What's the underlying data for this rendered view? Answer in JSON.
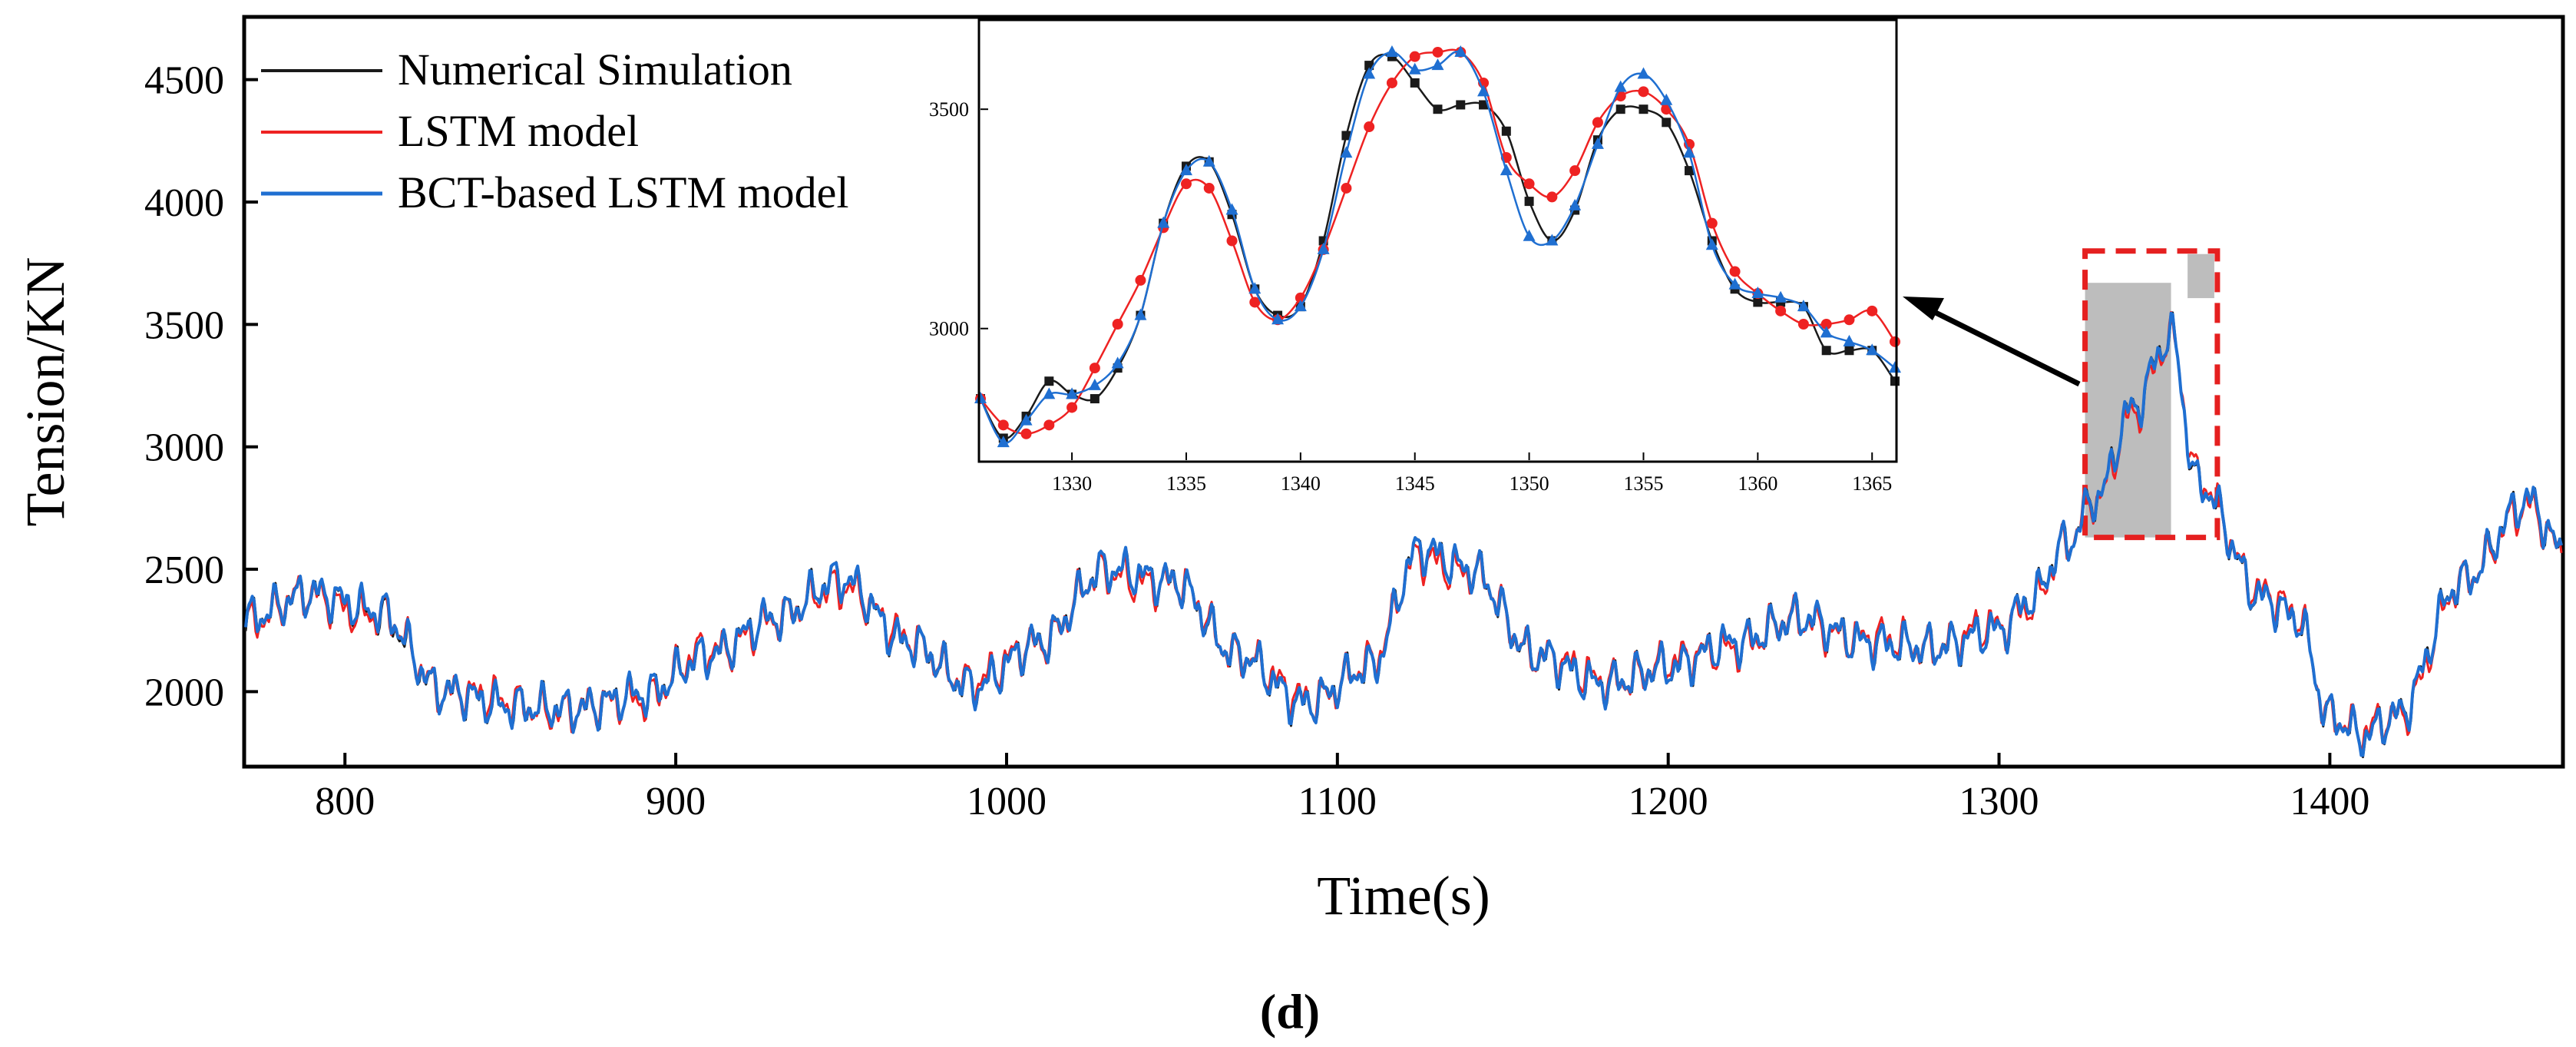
{
  "panel_label": "d",
  "colors": {
    "numerical": "#1a1a1a",
    "lstm": "#ee2222",
    "bct": "#1f6fd1",
    "highlight": "#e52020",
    "shade": "#bdbdbd"
  },
  "chart_data": [
    {
      "id": "main",
      "type": "line",
      "title": "",
      "xlabel": "Time(s)",
      "ylabel": "Tension/KN",
      "xlim": [
        770,
        1470
      ],
      "ylim": [
        1700,
        4750
      ],
      "xticks": [
        800,
        900,
        1000,
        1100,
        1200,
        1300,
        1400
      ],
      "yticks": [
        2000,
        2500,
        3000,
        3500,
        4000,
        4500
      ],
      "legend": {
        "position": "top-left",
        "entries": [
          "Numerical Simulation",
          "LSTM model",
          "BCT-based LSTM model"
        ]
      },
      "highlight_region": {
        "x_range": [
          1326,
          1366
        ],
        "y_range": [
          2630,
          3800
        ]
      },
      "anchors_x": [
        770,
        790,
        810,
        830,
        850,
        870,
        890,
        910,
        930,
        950,
        970,
        990,
        1010,
        1030,
        1050,
        1070,
        1090,
        1110,
        1125,
        1140,
        1160,
        1180,
        1200,
        1220,
        1240,
        1260,
        1280,
        1300,
        1310,
        1320,
        1330,
        1340,
        1352,
        1360,
        1380,
        1390,
        1400,
        1410,
        1420,
        1440,
        1460,
        1470
      ],
      "series": [
        {
          "name": "Numerical Simulation",
          "values": [
            2300,
            2400,
            2320,
            2000,
            1940,
            1930,
            1990,
            2150,
            2300,
            2460,
            2200,
            2020,
            2200,
            2500,
            2450,
            2150,
            1950,
            2100,
            2580,
            2500,
            2150,
            2030,
            2100,
            2200,
            2300,
            2200,
            2180,
            2250,
            2380,
            2600,
            2800,
            3150,
            3450,
            2850,
            2380,
            2300,
            1900,
            1820,
            1900,
            2450,
            2780,
            2580
          ]
        },
        {
          "name": "LSTM model",
          "values": [
            2290,
            2390,
            2310,
            2010,
            1950,
            1920,
            1980,
            2160,
            2290,
            2440,
            2210,
            2030,
            2210,
            2480,
            2440,
            2160,
            1960,
            2110,
            2560,
            2480,
            2160,
            2040,
            2110,
            2190,
            2290,
            2210,
            2190,
            2260,
            2370,
            2590,
            2790,
            3140,
            3430,
            2870,
            2390,
            2310,
            1910,
            1830,
            1890,
            2440,
            2770,
            2570
          ]
        },
        {
          "name": "BCT-based LSTM model",
          "values": [
            2300,
            2400,
            2330,
            2000,
            1940,
            1930,
            1990,
            2150,
            2300,
            2460,
            2200,
            2020,
            2200,
            2500,
            2450,
            2150,
            1950,
            2100,
            2580,
            2500,
            2150,
            2030,
            2100,
            2200,
            2300,
            2200,
            2180,
            2250,
            2380,
            2600,
            2800,
            3150,
            3450,
            2850,
            2380,
            2300,
            1900,
            1820,
            1900,
            2450,
            2780,
            2580
          ]
        }
      ]
    },
    {
      "id": "inset",
      "type": "line",
      "title": "",
      "xlabel": "",
      "ylabel": "",
      "xlim": [
        1326,
        1366
      ],
      "ylim": [
        2700,
        3700
      ],
      "xticks": [
        1330,
        1335,
        1340,
        1345,
        1350,
        1355,
        1360,
        1365
      ],
      "yticks": [
        3000,
        3500
      ],
      "x": [
        1326,
        1327,
        1328,
        1329,
        1330,
        1331,
        1332,
        1333,
        1334,
        1335,
        1336,
        1337,
        1338,
        1339,
        1340,
        1341,
        1342,
        1343,
        1344,
        1345,
        1346,
        1347,
        1348,
        1349,
        1350,
        1351,
        1352,
        1353,
        1354,
        1355,
        1356,
        1357,
        1358,
        1359,
        1360,
        1361,
        1362,
        1363,
        1364,
        1365,
        1366
      ],
      "series": [
        {
          "name": "Numerical Simulation",
          "marker": "square",
          "values": [
            2840,
            2750,
            2800,
            2880,
            2850,
            2840,
            2910,
            3030,
            3240,
            3370,
            3380,
            3260,
            3090,
            3030,
            3050,
            3200,
            3440,
            3600,
            3620,
            3560,
            3500,
            3510,
            3510,
            3450,
            3290,
            3200,
            3270,
            3430,
            3500,
            3500,
            3470,
            3360,
            3200,
            3090,
            3060,
            3060,
            3050,
            2950,
            2950,
            2950,
            2880
          ]
        },
        {
          "name": "LSTM model",
          "marker": "circle",
          "values": [
            2840,
            2780,
            2760,
            2780,
            2820,
            2910,
            3010,
            3110,
            3230,
            3330,
            3320,
            3200,
            3060,
            3020,
            3070,
            3180,
            3320,
            3460,
            3560,
            3620,
            3630,
            3630,
            3560,
            3390,
            3330,
            3300,
            3360,
            3470,
            3530,
            3540,
            3500,
            3420,
            3240,
            3130,
            3080,
            3040,
            3010,
            3010,
            3020,
            3040,
            2970
          ]
        },
        {
          "name": "BCT-based LSTM model",
          "marker": "triangle",
          "values": [
            2840,
            2740,
            2790,
            2850,
            2850,
            2870,
            2920,
            3030,
            3240,
            3360,
            3380,
            3270,
            3090,
            3020,
            3050,
            3180,
            3400,
            3580,
            3630,
            3590,
            3600,
            3630,
            3540,
            3360,
            3210,
            3200,
            3280,
            3420,
            3550,
            3580,
            3520,
            3400,
            3190,
            3100,
            3080,
            3070,
            3050,
            2990,
            2970,
            2950,
            2910
          ]
        }
      ]
    }
  ]
}
